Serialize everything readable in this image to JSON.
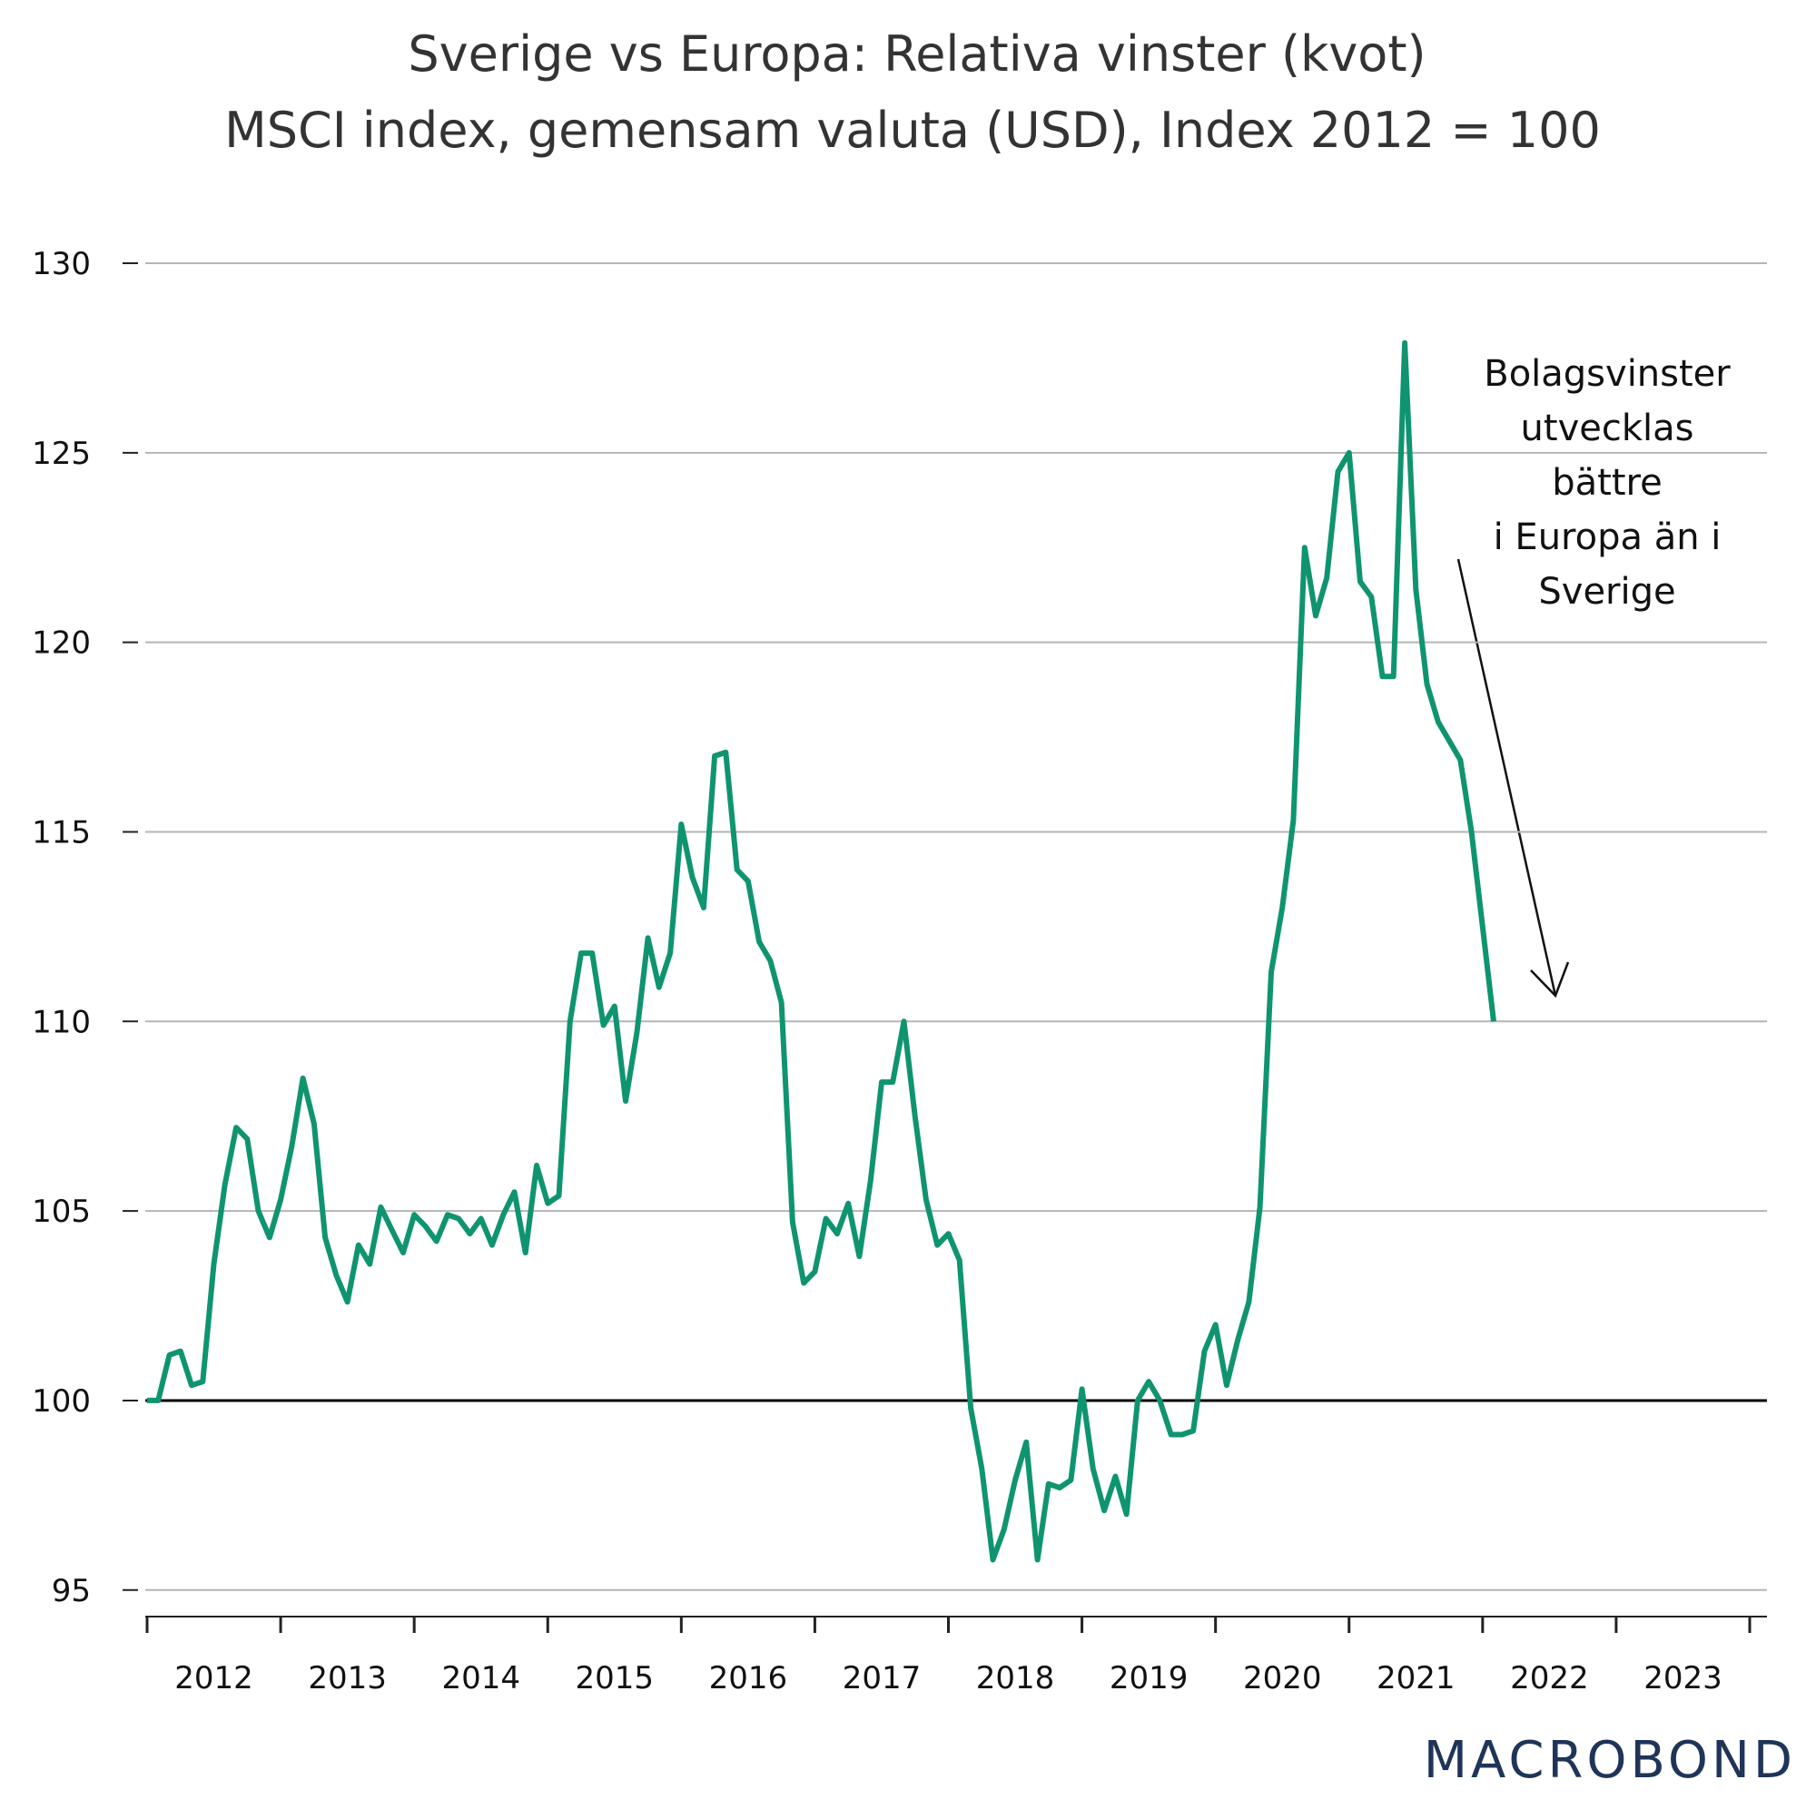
{
  "chart_data": {
    "type": "line",
    "title": "Sverige vs Europa: Relativa vinster (kvot)",
    "subtitle": "MSCI index, gemensam valuta (USD), Index 2012 = 100",
    "annotation": [
      "Bolagsvinster",
      "utvecklas",
      "bättre",
      "i Europa än i",
      "Sverige"
    ],
    "logo": "MACROBOND",
    "xlim": [
      2012,
      2024
    ],
    "xticks": [
      2012,
      2013,
      2014,
      2015,
      2016,
      2017,
      2018,
      2019,
      2020,
      2021,
      2022,
      2023,
      2024
    ],
    "xlabels": [
      {
        "value": 2012.5,
        "label": "2012"
      },
      {
        "value": 2013.5,
        "label": "2013"
      },
      {
        "value": 2014.5,
        "label": "2014"
      },
      {
        "value": 2015.5,
        "label": "2015"
      },
      {
        "value": 2016.5,
        "label": "2016"
      },
      {
        "value": 2017.5,
        "label": "2017"
      },
      {
        "value": 2018.5,
        "label": "2018"
      },
      {
        "value": 2019.5,
        "label": "2019"
      },
      {
        "value": 2020.5,
        "label": "2020"
      },
      {
        "value": 2021.5,
        "label": "2021"
      },
      {
        "value": 2022.5,
        "label": "2022"
      },
      {
        "value": 2023.5,
        "label": "2023"
      }
    ],
    "ylim": [
      94.3,
      130
    ],
    "yticks": [
      95,
      100,
      105,
      110,
      115,
      120,
      125,
      130
    ],
    "reference_line": 100,
    "grid": true,
    "x": [
      2012,
      2012.083,
      2012.167,
      2012.25,
      2012.333,
      2012.417,
      2012.5,
      2012.583,
      2012.667,
      2012.75,
      2012.833,
      2012.917,
      2013,
      2013.083,
      2013.167,
      2013.25,
      2013.333,
      2013.417,
      2013.5,
      2013.583,
      2013.667,
      2013.75,
      2013.833,
      2013.917,
      2014,
      2014.083,
      2014.167,
      2014.25,
      2014.333,
      2014.417,
      2014.5,
      2014.583,
      2014.667,
      2014.75,
      2014.833,
      2014.917,
      2015,
      2015.083,
      2015.167,
      2015.25,
      2015.333,
      2015.417,
      2015.5,
      2015.583,
      2015.667,
      2015.75,
      2015.833,
      2015.917,
      2016,
      2016.083,
      2016.167,
      2016.25,
      2016.333,
      2016.417,
      2016.5,
      2016.583,
      2016.667,
      2016.75,
      2016.833,
      2016.917,
      2017,
      2017.083,
      2017.167,
      2017.25,
      2017.333,
      2017.417,
      2017.5,
      2017.583,
      2017.667,
      2017.75,
      2017.833,
      2017.917,
      2018,
      2018.083,
      2018.167,
      2018.25,
      2018.333,
      2018.417,
      2018.5,
      2018.583,
      2018.667,
      2018.75,
      2018.833,
      2018.917,
      2019,
      2019.083,
      2019.167,
      2019.25,
      2019.333,
      2019.417,
      2019.5,
      2019.583,
      2019.667,
      2019.75,
      2019.833,
      2019.917,
      2020,
      2020.083,
      2020.167,
      2020.25,
      2020.333,
      2020.417,
      2020.5,
      2020.583,
      2020.667,
      2020.75,
      2020.833,
      2020.917,
      2021,
      2021.083,
      2021.167,
      2021.25,
      2021.333,
      2021.417,
      2021.5,
      2021.583,
      2021.667,
      2021.75,
      2021.833,
      2021.917,
      2022,
      2022.083
    ],
    "series": [
      {
        "name": "Sverige vs Europa",
        "color": "#0f9470",
        "values": [
          100,
          100,
          101.2,
          101.3,
          100.4,
          100.5,
          103.6,
          105.7,
          107.2,
          106.9,
          105,
          104.3,
          105.3,
          106.7,
          108.5,
          107.3,
          104.3,
          103.3,
          102.6,
          104.1,
          103.6,
          105.1,
          104.5,
          103.9,
          104.9,
          104.6,
          104.2,
          104.9,
          104.8,
          104.4,
          104.8,
          104.1,
          104.9,
          105.5,
          103.9,
          106.2,
          105.2,
          105.4,
          110,
          111.8,
          111.8,
          109.9,
          110.4,
          107.9,
          109.7,
          112.2,
          110.9,
          111.8,
          115.2,
          113.8,
          113,
          117,
          117.1,
          114,
          113.7,
          112.1,
          111.6,
          110.5,
          104.7,
          103.1,
          103.4,
          104.8,
          104.4,
          105.2,
          103.8,
          105.8,
          108.4,
          108.4,
          110,
          107.5,
          105.3,
          104.1,
          104.4,
          103.7,
          99.8,
          98.2,
          95.8,
          96.6,
          97.9,
          98.9,
          95.8,
          97.8,
          97.7,
          97.9,
          100.3,
          98.2,
          97.1,
          98,
          97,
          100,
          100.5,
          100,
          99.1,
          99.1,
          99.2,
          101.3,
          102,
          100.4,
          101.6,
          102.6,
          105.1,
          111.3,
          113,
          115.3,
          122.5,
          120.7,
          121.7,
          124.5,
          125,
          121.6,
          121.2,
          119.1,
          119.1,
          127.9,
          121.4,
          118.9,
          117.9,
          117.4,
          116.9,
          115,
          112.5,
          110
        ]
      }
    ]
  }
}
